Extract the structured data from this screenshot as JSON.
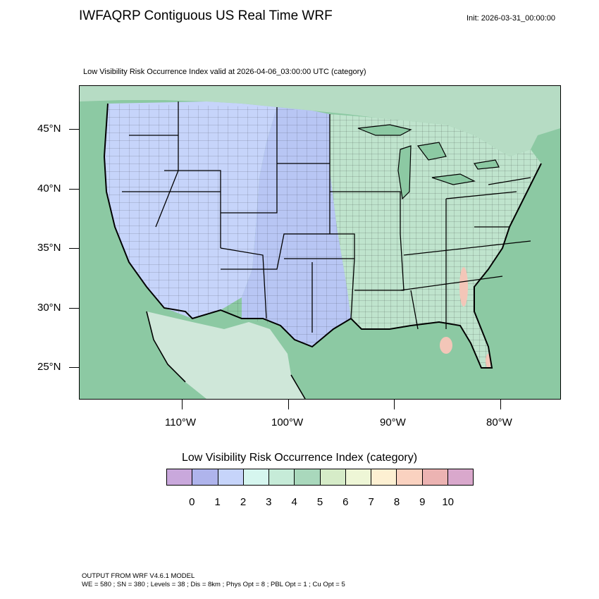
{
  "title": "IWFAQRP Contiguous US Real Time WRF",
  "init": "Init: 2026-03-31_00:00:00",
  "subtitle": "Low Visibility Risk Occurrence Index valid at 2026-04-06_03:00:00 UTC   (category)",
  "latitude_labels": [
    "45°N",
    "40°N",
    "35°N",
    "30°N",
    "25°N"
  ],
  "longitude_labels": [
    "110°W",
    "100°W",
    "90°W",
    "80°W"
  ],
  "colorbar": {
    "title": "Low Visibility Risk Occurrence Index  (category)",
    "colors": [
      "#c9a8dc",
      "#afb4ec",
      "#c6d4fa",
      "#d6f6ef",
      "#c6ebd8",
      "#a9d8bc",
      "#d6ecc8",
      "#eef6d6",
      "#fdf0d2",
      "#fad2c0",
      "#ecb3b2",
      "#d9a8cc"
    ],
    "labels": [
      "0",
      "1",
      "2",
      "3",
      "4",
      "5",
      "6",
      "7",
      "8",
      "9",
      "10"
    ]
  },
  "map_colors": {
    "ocean": "#8cc9a3",
    "west_fill": "#c6d4fa",
    "plains_fill": "#b8c6f4",
    "east_fill": "#bfe4cd",
    "mexico_fill": "#cfe7d9",
    "canada_fill": "#b6dcc4",
    "hotspot": "#f3c6b8"
  },
  "footer": {
    "line1": "OUTPUT FROM WRF V4.6.1 MODEL",
    "line2": "WE = 580 ; SN = 380 ; Levels = 38 ; Dis = 8km ; Phys Opt = 8 ; PBL Opt = 1 ; Cu Opt = 5"
  }
}
